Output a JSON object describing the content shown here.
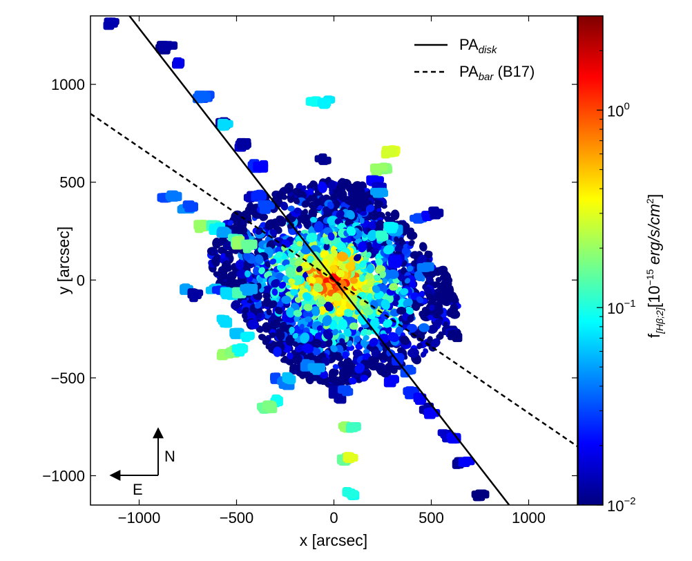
{
  "chart_data": {
    "type": "scatter",
    "title": "",
    "xlabel": "x [arcsec]",
    "ylabel": "y [arcsec]",
    "xlim": [
      -1250,
      1250
    ],
    "ylim": [
      -1150,
      1350
    ],
    "xticks": [
      -1000,
      -500,
      0,
      500,
      1000
    ],
    "yticks": [
      -1000,
      -500,
      0,
      500,
      1000
    ],
    "xtick_labels": [
      "−1000",
      "−500",
      "0",
      "500",
      "1000"
    ],
    "ytick_labels": [
      "−1000",
      "−500",
      "0",
      "500",
      "1000"
    ],
    "colorbar": {
      "label_prefix": "f",
      "label_sub": "[Hβ;2]",
      "label_main": "[10",
      "label_exp": "−15",
      "label_rest": " erg/s/cm",
      "label_exp2": "2",
      "label_close": "]",
      "scale": "log",
      "range": [
        0.01,
        3.0
      ],
      "ticks": [
        0.01,
        0.1,
        1.0
      ],
      "tick_bases": [
        "10",
        "10",
        "10"
      ],
      "tick_exps": [
        "−2",
        "−1",
        "0"
      ]
    },
    "lines": [
      {
        "name": "PA_disk",
        "base": "PA",
        "sub": "disk",
        "suffix": "",
        "style": "solid",
        "points": [
          [
            -1050,
            1350
          ],
          [
            900,
            -1150
          ]
        ]
      },
      {
        "name": "PA_bar (B17)",
        "base": "PA",
        "sub": "bar",
        "suffix": " (B17)",
        "style": "dashed",
        "points": [
          [
            -1250,
            850
          ],
          [
            1250,
            -850
          ]
        ]
      }
    ],
    "legend": {
      "position": "top-right"
    },
    "compass": {
      "north": "N",
      "east": "E"
    },
    "points": [
      [
        -1140,
        1315,
        0.013
      ],
      [
        -880,
        1195,
        0.011
      ],
      [
        -855,
        1200,
        0.012
      ],
      [
        -800,
        1110,
        0.018
      ],
      [
        -650,
        945,
        0.03
      ],
      [
        -680,
        940,
        0.035
      ],
      [
        -570,
        810,
        0.012
      ],
      [
        -560,
        800,
        0.07
      ],
      [
        -490,
        690,
        0.015
      ],
      [
        -460,
        700,
        0.012
      ],
      [
        -400,
        590,
        0.025
      ],
      [
        -370,
        585,
        0.02
      ],
      [
        -100,
        915,
        0.09
      ],
      [
        -40,
        915,
        0.075
      ],
      [
        -60,
        910,
        0.08
      ],
      [
        -60,
        620,
        0.011
      ],
      [
        300,
        665,
        0.3
      ],
      [
        280,
        660,
        0.28
      ],
      [
        270,
        575,
        0.18
      ],
      [
        230,
        575,
        0.2
      ],
      [
        210,
        510,
        0.02
      ],
      [
        240,
        475,
        0.015
      ],
      [
        230,
        455,
        0.05
      ],
      [
        -870,
        420,
        0.03
      ],
      [
        -820,
        440,
        0.04
      ],
      [
        -760,
        370,
        0.045
      ],
      [
        -730,
        380,
        0.03
      ],
      [
        -680,
        280,
        0.2
      ],
      [
        -620,
        285,
        0.12
      ],
      [
        -600,
        270,
        0.08
      ],
      [
        -560,
        250,
        0.05
      ],
      [
        -500,
        210,
        0.12
      ],
      [
        -480,
        200,
        0.2
      ],
      [
        -440,
        180,
        0.15
      ],
      [
        -760,
        -45,
        0.05
      ],
      [
        -710,
        -70,
        0.012
      ],
      [
        -620,
        -45,
        0.06
      ],
      [
        -580,
        -50,
        0.025
      ],
      [
        -540,
        -60,
        0.07
      ],
      [
        -480,
        -60,
        0.13
      ],
      [
        -440,
        -45,
        0.05
      ],
      [
        -560,
        -200,
        0.07
      ],
      [
        -500,
        -260,
        0.06
      ],
      [
        -440,
        -290,
        0.08
      ],
      [
        -560,
        -380,
        0.2
      ],
      [
        -520,
        -360,
        0.18
      ],
      [
        -480,
        -350,
        0.09
      ],
      [
        -300,
        -500,
        0.03
      ],
      [
        -250,
        -520,
        0.04
      ],
      [
        -230,
        -495,
        0.06
      ],
      [
        -300,
        -610,
        0.09
      ],
      [
        -360,
        -650,
        0.15
      ],
      [
        -330,
        -640,
        0.17
      ],
      [
        -130,
        -430,
        0.04
      ],
      [
        -90,
        -450,
        0.05
      ],
      [
        10,
        -565,
        0.012
      ],
      [
        40,
        -600,
        0.012
      ],
      [
        60,
        -560,
        0.03
      ],
      [
        60,
        -750,
        0.2
      ],
      [
        100,
        -750,
        0.12
      ],
      [
        60,
        -910,
        0.15
      ],
      [
        90,
        -905,
        0.3
      ],
      [
        95,
        -1090,
        0.09
      ],
      [
        80,
        -1085,
        0.1
      ],
      [
        330,
        -400,
        0.025
      ],
      [
        380,
        -460,
        0.03
      ],
      [
        300,
        -510,
        0.02
      ],
      [
        400,
        -565,
        0.025
      ],
      [
        440,
        -600,
        0.02
      ],
      [
        480,
        -650,
        0.012
      ],
      [
        500,
        -680,
        0.02
      ],
      [
        570,
        -790,
        0.015
      ],
      [
        620,
        -800,
        0.02
      ],
      [
        640,
        -930,
        0.011
      ],
      [
        680,
        -930,
        0.02
      ],
      [
        750,
        -1095,
        0.01
      ],
      [
        600,
        -260,
        0.011
      ],
      [
        620,
        -270,
        0.014
      ],
      [
        620,
        -280,
        0.008
      ],
      [
        430,
        320,
        0.03
      ],
      [
        470,
        330,
        0.02
      ],
      [
        520,
        350,
        0.012
      ],
      [
        320,
        260,
        0.05
      ],
      [
        300,
        270,
        0.08
      ],
      [
        250,
        230,
        0.11
      ],
      [
        470,
        65,
        0.04
      ],
      [
        330,
        110,
        0.015
      ],
      [
        310,
        100,
        0.02
      ],
      [
        -420,
        430,
        0.014
      ],
      [
        -390,
        440,
        0.025
      ],
      [
        -350,
        380,
        0.03
      ]
    ],
    "cloud": {
      "center": [
        0,
        -10
      ],
      "radius": 550,
      "peak_flux": 2.4,
      "note": "dense concentration of regions around the galaxy nucleus with flux rising toward the center"
    }
  }
}
